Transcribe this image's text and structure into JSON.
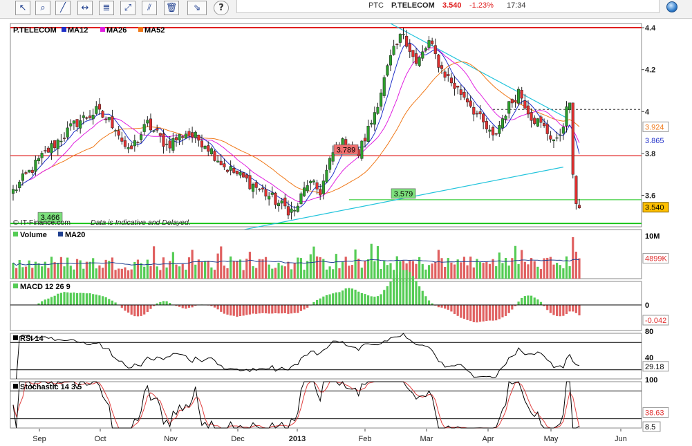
{
  "toolbar": {
    "buttons": [
      {
        "name": "pointer-tool-button",
        "glyph": "↖"
      },
      {
        "name": "zoom-tool-button",
        "glyph": "⌕"
      },
      {
        "name": "trendline-tool-button",
        "glyph": "╱"
      },
      {
        "name": "horizontal-line-tool-button",
        "glyph": "↔"
      },
      {
        "name": "fibonacci-tool-button",
        "glyph": "≣"
      },
      {
        "name": "channel-tool-button",
        "glyph": "⤢"
      },
      {
        "name": "parallel-lines-tool-button",
        "glyph": "⫽"
      },
      {
        "name": "delete-drawings-button",
        "glyph": "🗑"
      },
      {
        "name": "arrow-tool-button",
        "glyph": "⇘"
      },
      {
        "name": "help-button",
        "glyph": "?"
      }
    ]
  },
  "quote": {
    "symbol": "PTC",
    "name": "P.TELECOM",
    "price": "3.540",
    "change": "-1.23%",
    "time": "17:34"
  },
  "colors": {
    "up": "#2ca02c",
    "down": "#e03030",
    "ma12": "#1f2fc8",
    "ma26": "#e020e0",
    "ma52": "#f07818",
    "trend": "#22c4dc",
    "resistance": "#e01e1e",
    "support": "#18c418",
    "volume_up": "#55cc55",
    "volume_down": "#e06060"
  },
  "chart_data": [
    {
      "type": "candlestick",
      "title": "P.TELECOM",
      "legend": [
        "P.TELECOM",
        "MA12",
        "MA26",
        "MA52"
      ],
      "y_ticks": [
        "4.4",
        "4.2",
        "4",
        "3.8",
        "3.6"
      ],
      "ylim": [
        3.45,
        4.42
      ],
      "months": [
        "Sep",
        "Oct",
        "Nov",
        "Dec",
        "2013",
        "Feb",
        "Mar",
        "Apr",
        "May",
        "Jun"
      ],
      "last_price": "3.540",
      "ma_value": "3.924",
      "ma_value2": "3.865",
      "levels": [
        {
          "label": "3.789",
          "value": 3.789
        },
        {
          "label": "3.579",
          "value": 3.579
        },
        {
          "label": "3.466",
          "value": 3.466
        }
      ],
      "footer": "© IT-Finance.com",
      "disclaimer": "Data is Indicative and Delayed."
    },
    {
      "type": "bar",
      "title": "Volume",
      "legend": [
        "Volume",
        "MA20"
      ],
      "y_ticks": [
        "10M"
      ],
      "last_value": "4899K"
    },
    {
      "type": "bar",
      "title": "MACD 12 26 9",
      "y_ticks": [
        "0"
      ],
      "last_value": "-0.042"
    },
    {
      "type": "line",
      "title": "RSI 14",
      "y_ticks": [
        "80",
        "40"
      ],
      "last_value": "29.18"
    },
    {
      "type": "line",
      "title": "Stochastic 14 3 5",
      "y_ticks": [
        "100"
      ],
      "last_value": "38.63",
      "last_value2": "8.5"
    }
  ]
}
